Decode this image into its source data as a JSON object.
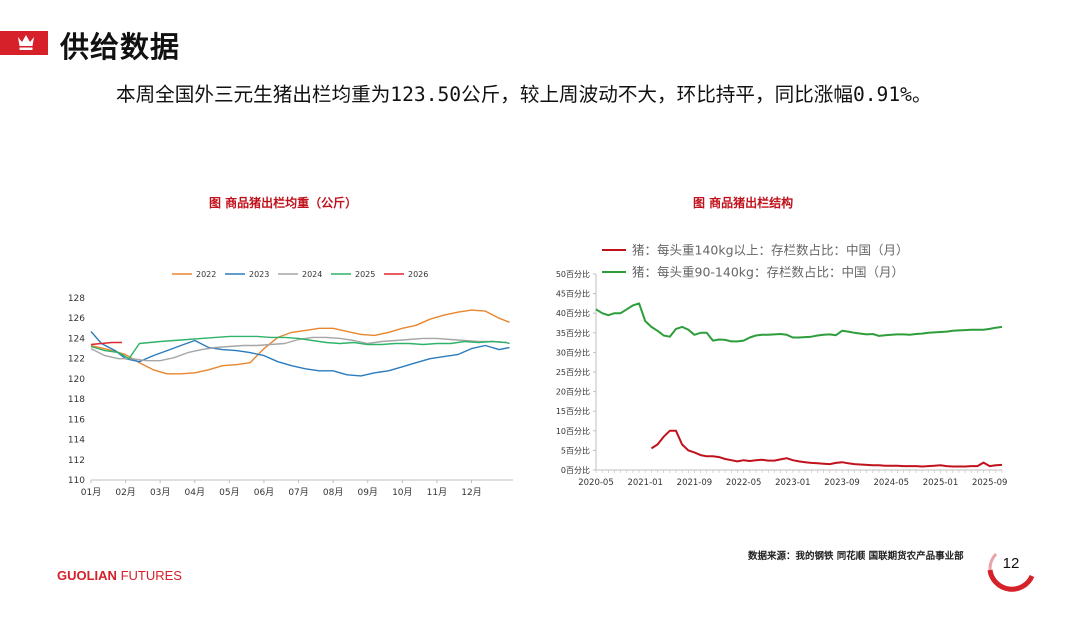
{
  "header": {
    "title": "供给数据",
    "icon": "crown-icon",
    "accent_color": "#d6202a"
  },
  "summary": "本周全国外三元生猪出栏均重为123.50公斤，较上周波动不大，环比持平，同比涨幅0.91%。",
  "chart_data": [
    {
      "type": "line",
      "title": "图   商品猪出栏均重（公斤）",
      "categories": [
        "01月",
        "02月",
        "03月",
        "04月",
        "05月",
        "06月",
        "07月",
        "08月",
        "09月",
        "10月",
        "11月",
        "12月"
      ],
      "ylim": [
        110,
        128
      ],
      "yticks": [
        110,
        112,
        114,
        116,
        118,
        120,
        122,
        124,
        126,
        128
      ],
      "legend_position": "top",
      "series": [
        {
          "name": "2022",
          "color": "#e8862e",
          "x": [
            0,
            0.5,
            1,
            1.4,
            1.8,
            2.2,
            2.6,
            3,
            3.4,
            3.8,
            4.2,
            4.6,
            5,
            5.4,
            5.8,
            6.2,
            6.6,
            7,
            7.4,
            7.8,
            8.2,
            8.6,
            9,
            9.4,
            9.8,
            10.2,
            10.6,
            11,
            11.4,
            11.8,
            12.1
          ],
          "values": [
            123.3,
            122.9,
            122.4,
            121.6,
            120.9,
            120.5,
            120.5,
            120.6,
            120.9,
            121.3,
            121.4,
            121.6,
            123.0,
            124.1,
            124.6,
            124.8,
            125.0,
            125.0,
            124.7,
            124.4,
            124.3,
            124.6,
            125.0,
            125.3,
            125.9,
            126.3,
            126.6,
            126.8,
            126.7,
            126.0,
            125.6
          ]
        },
        {
          "name": "2023",
          "color": "#2a7bbf",
          "x": [
            0,
            0.3,
            0.7,
            1,
            1.4,
            1.8,
            2.2,
            2.6,
            3,
            3.4,
            3.8,
            4.2,
            4.6,
            5,
            5.4,
            5.8,
            6.2,
            6.6,
            7,
            7.4,
            7.8,
            8.2,
            8.6,
            9,
            9.4,
            9.8,
            10.2,
            10.6,
            11,
            11.4,
            11.8,
            12.1
          ],
          "values": [
            124.7,
            123.5,
            122.8,
            122.0,
            121.7,
            122.3,
            122.8,
            123.3,
            123.8,
            123.1,
            122.9,
            122.8,
            122.6,
            122.3,
            121.7,
            121.3,
            121.0,
            120.8,
            120.8,
            120.4,
            120.3,
            120.6,
            120.8,
            121.2,
            121.6,
            122.0,
            122.2,
            122.4,
            123.0,
            123.3,
            122.9,
            123.1
          ]
        },
        {
          "name": "2024",
          "color": "#a6a6a6",
          "x": [
            0,
            0.4,
            0.8,
            1.2,
            1.6,
            2,
            2.4,
            2.8,
            3.2,
            3.6,
            4,
            4.4,
            4.8,
            5.2,
            5.6,
            6,
            6.4,
            6.8,
            7.2,
            7.6,
            8,
            8.4,
            8.8,
            9.2,
            9.6,
            10,
            10.4,
            10.8,
            11.2,
            11.6,
            12,
            12.1
          ],
          "values": [
            123.0,
            122.3,
            122.0,
            122.0,
            121.8,
            121.8,
            122.1,
            122.6,
            122.9,
            123.1,
            123.2,
            123.3,
            123.3,
            123.4,
            123.5,
            123.9,
            124.1,
            124.1,
            124.0,
            123.8,
            123.5,
            123.7,
            123.8,
            123.9,
            124.0,
            124.0,
            123.9,
            123.8,
            123.7,
            123.7,
            123.6,
            123.5
          ]
        },
        {
          "name": "2025",
          "color": "#2fb36a",
          "x": [
            0,
            0.4,
            0.8,
            1.1,
            1.4,
            1.7,
            2,
            2.4,
            2.8,
            3.2,
            3.6,
            4,
            4.4,
            4.8,
            5.2,
            5.6,
            6,
            6.4,
            6.8,
            7.2,
            7.6,
            8,
            8.4,
            8.8,
            9.2,
            9.6,
            10,
            10.4,
            10.8,
            11.2,
            11.6,
            12,
            12.1
          ],
          "values": [
            123.2,
            122.8,
            122.6,
            122.0,
            123.5,
            123.6,
            123.7,
            123.8,
            123.9,
            124.0,
            124.1,
            124.2,
            124.2,
            124.2,
            124.1,
            124.1,
            124.0,
            123.8,
            123.6,
            123.5,
            123.6,
            123.4,
            123.4,
            123.5,
            123.5,
            123.4,
            123.5,
            123.5,
            123.7,
            123.6,
            123.7,
            123.6,
            123.5
          ]
        },
        {
          "name": "2026",
          "color": "#e0262f",
          "x": [
            0,
            0.3,
            0.6,
            0.9
          ],
          "values": [
            123.4,
            123.5,
            123.6,
            123.6
          ]
        }
      ]
    },
    {
      "type": "line",
      "title": "图   商品猪出栏结构",
      "x_range": [
        "2020-05",
        "2025-11"
      ],
      "xticks": [
        "2020-05",
        "2021-01",
        "2021-09",
        "2022-05",
        "2023-01",
        "2023-09",
        "2024-05",
        "2025-01",
        "2025-09"
      ],
      "ylim": [
        0,
        50
      ],
      "yticks": [
        "0百分比",
        "5百分比",
        "10百分比",
        "15百分比",
        "20百分比",
        "25百分比",
        "30百分比",
        "35百分比",
        "40百分比",
        "45百分比",
        "50百分比"
      ],
      "legend_position": "top-left",
      "series": [
        {
          "name": "猪：每头重140kg以上：存栏数占比：中国（月）",
          "color": "#c0121c",
          "x": [
            "2021-02",
            "2021-03",
            "2021-04",
            "2021-05",
            "2021-06",
            "2021-07",
            "2021-08",
            "2021-09",
            "2021-10",
            "2021-11",
            "2021-12",
            "2022-01",
            "2022-02",
            "2022-03",
            "2022-04",
            "2022-05",
            "2022-06",
            "2022-07",
            "2022-08",
            "2022-09",
            "2022-10",
            "2022-11",
            "2022-12",
            "2023-01",
            "2023-02",
            "2023-03",
            "2023-04",
            "2023-05",
            "2023-06",
            "2023-07",
            "2023-08",
            "2023-09",
            "2023-10",
            "2023-11",
            "2023-12",
            "2024-01",
            "2024-02",
            "2024-03",
            "2024-04",
            "2024-05",
            "2024-06",
            "2024-07",
            "2024-08",
            "2024-09",
            "2024-10",
            "2024-11",
            "2024-12",
            "2025-01",
            "2025-02",
            "2025-03",
            "2025-04",
            "2025-05",
            "2025-06",
            "2025-07",
            "2025-08",
            "2025-09",
            "2025-10",
            "2025-11"
          ],
          "values": [
            5.5,
            6.5,
            8.5,
            10.0,
            10.0,
            6.5,
            5.0,
            4.5,
            3.8,
            3.5,
            3.5,
            3.3,
            2.8,
            2.5,
            2.2,
            2.5,
            2.3,
            2.5,
            2.6,
            2.4,
            2.4,
            2.7,
            3.0,
            2.5,
            2.2,
            2.0,
            1.8,
            1.7,
            1.6,
            1.5,
            1.8,
            2.0,
            1.7,
            1.5,
            1.4,
            1.3,
            1.2,
            1.2,
            1.1,
            1.1,
            1.1,
            1.0,
            1.0,
            1.0,
            0.9,
            1.0,
            1.1,
            1.2,
            1.0,
            0.9,
            0.9,
            0.9,
            1.0,
            1.0,
            1.9,
            1.0,
            1.2,
            1.3
          ]
        },
        {
          "name": "猪：每头重90-140kg：存栏数占比：中国（月）",
          "color": "#2e9e3c",
          "x": [
            "2020-05",
            "2020-06",
            "2020-07",
            "2020-08",
            "2020-09",
            "2020-10",
            "2020-11",
            "2020-12",
            "2021-01",
            "2021-02",
            "2021-03",
            "2021-04",
            "2021-05",
            "2021-06",
            "2021-07",
            "2021-08",
            "2021-09",
            "2021-10",
            "2021-11",
            "2021-12",
            "2022-01",
            "2022-02",
            "2022-03",
            "2022-04",
            "2022-05",
            "2022-06",
            "2022-07",
            "2022-08",
            "2022-09",
            "2022-10",
            "2022-11",
            "2022-12",
            "2023-01",
            "2023-02",
            "2023-03",
            "2023-04",
            "2023-05",
            "2023-06",
            "2023-07",
            "2023-08",
            "2023-09",
            "2023-10",
            "2023-11",
            "2023-12",
            "2024-01",
            "2024-02",
            "2024-03",
            "2024-04",
            "2024-05",
            "2024-06",
            "2024-07",
            "2024-08",
            "2024-09",
            "2024-10",
            "2024-11",
            "2024-12",
            "2025-01",
            "2025-02",
            "2025-03",
            "2025-04",
            "2025-05",
            "2025-06",
            "2025-07",
            "2025-08",
            "2025-09",
            "2025-10",
            "2025-11"
          ],
          "values": [
            41.0,
            40.0,
            39.5,
            40.0,
            40.0,
            41.0,
            42.0,
            42.5,
            38.0,
            36.5,
            35.5,
            34.3,
            34.0,
            36.0,
            36.5,
            35.8,
            34.5,
            35.0,
            35.0,
            33.0,
            33.3,
            33.2,
            32.8,
            32.8,
            33.0,
            33.8,
            34.3,
            34.5,
            34.5,
            34.6,
            34.7,
            34.5,
            33.8,
            33.8,
            33.9,
            34.0,
            34.3,
            34.5,
            34.6,
            34.4,
            35.5,
            35.3,
            35.0,
            34.8,
            34.6,
            34.7,
            34.2,
            34.4,
            34.5,
            34.6,
            34.6,
            34.5,
            34.7,
            34.8,
            35.0,
            35.1,
            35.2,
            35.3,
            35.5,
            35.6,
            35.7,
            35.8,
            35.8,
            35.8,
            36.0,
            36.3,
            36.5
          ]
        }
      ]
    }
  ],
  "footer": {
    "source": "数据来源：我的钢铁  同花顺  国联期货农产品事业部",
    "brand_main": "GUOLIAN",
    "brand_sub": " FUTURES",
    "page_number": "12"
  }
}
